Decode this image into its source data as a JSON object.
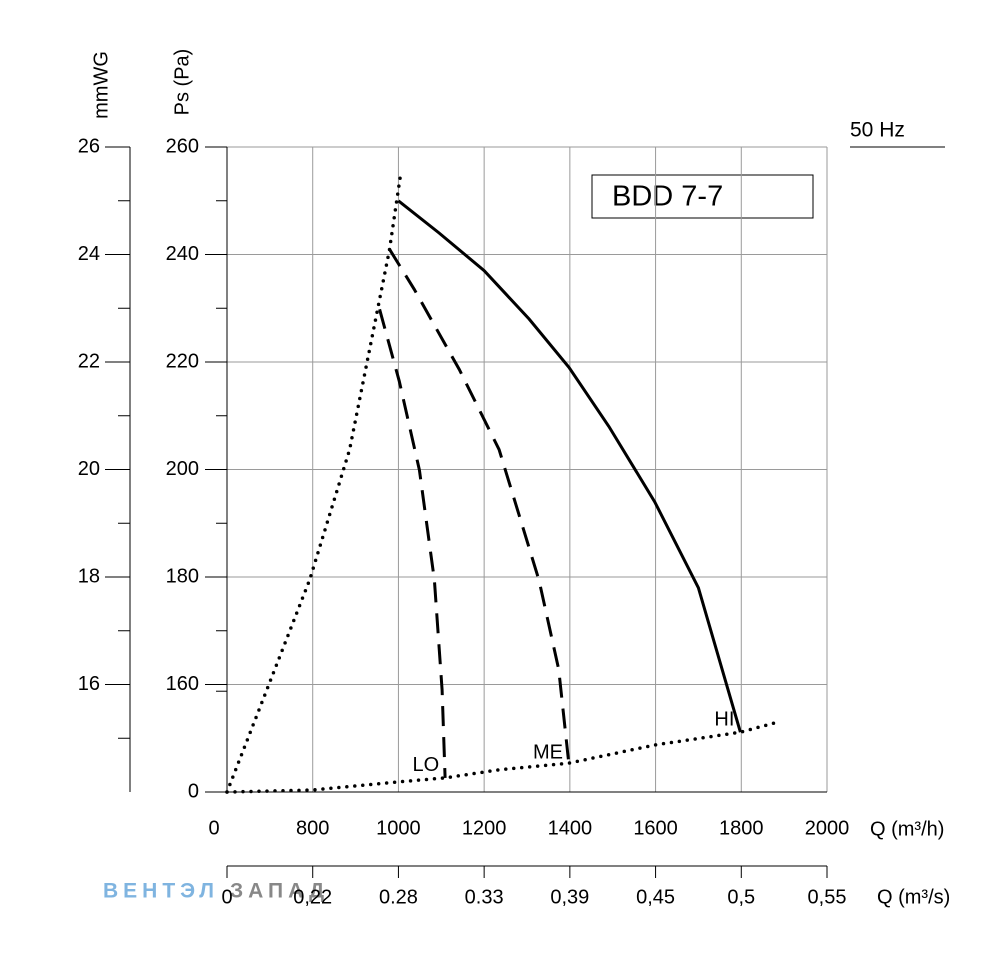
{
  "chart_data": {
    "type": "line",
    "title": "BDD 7-7",
    "subtitle": "50 Hz",
    "x_label": "Q (m³/h)",
    "x2_label": "Q (m³/s)",
    "y_label": "Ps (Pa)",
    "y2_label": "mmWG",
    "watermark": [
      "ВЕНТЭЛ",
      "ЗАПАД"
    ],
    "xticks": [
      0,
      800,
      1000,
      1200,
      1400,
      1600,
      1800,
      2000
    ],
    "x2ticks": [
      0,
      {
        "value": 0.22,
        "label": "0,22"
      },
      0.28,
      0.33,
      {
        "value": 0.39,
        "label": "0,39"
      },
      {
        "value": 0.45,
        "label": "0,45"
      },
      {
        "value": 0.5,
        "label": "0,5"
      },
      {
        "value": 0.55,
        "label": "0,55"
      }
    ],
    "yticks": [
      0,
      160,
      180,
      200,
      220,
      240,
      260
    ],
    "yminorticks": [
      150,
      170,
      190,
      210,
      230,
      250
    ],
    "y2lim": [
      14,
      26
    ],
    "y2ticks": [
      16,
      18,
      20,
      22,
      24,
      26
    ],
    "y2minorticks": [
      15,
      17,
      19,
      21,
      23,
      25
    ],
    "grid": true,
    "series": [
      {
        "name": "HI",
        "color": "#000000",
        "dash": "solid",
        "x": [
          1000,
          1095,
          1200,
          1305,
          1398,
          1491,
          1598,
          1700,
          1798
        ],
        "values": [
          250,
          244,
          237,
          228,
          219,
          208,
          194,
          178,
          89
        ]
      },
      {
        "name": "ME",
        "color": "#000000",
        "dash": "dashed",
        "x": [
          979,
          1037,
          1142,
          1235,
          1328,
          1374,
          1398
        ],
        "values": [
          241,
          233.5,
          218.6,
          203.7,
          179.4,
          162.8,
          40
        ]
      },
      {
        "name": "LO",
        "color": "#000000",
        "dash": "dashed",
        "x": [
          956,
          1002,
          1049,
          1084,
          1102,
          1109
        ],
        "values": [
          229.8,
          216.4,
          199.9,
          179.4,
          151.8,
          21
        ]
      },
      {
        "color": "#000000",
        "dash": "dotted",
        "x": [
          0,
          772,
          886,
          979,
          1005
        ],
        "values": [
          0,
          179.5,
          203.7,
          240.8,
          254.9
        ]
      },
      {
        "color": "#000000",
        "dash": "dotted",
        "x": [
          0,
          800,
          1000,
          1109,
          1235,
          1398,
          1598,
          1798,
          1879
        ],
        "values": [
          0,
          3,
          15,
          21,
          33,
          43,
          70,
          89,
          103
        ]
      }
    ]
  }
}
